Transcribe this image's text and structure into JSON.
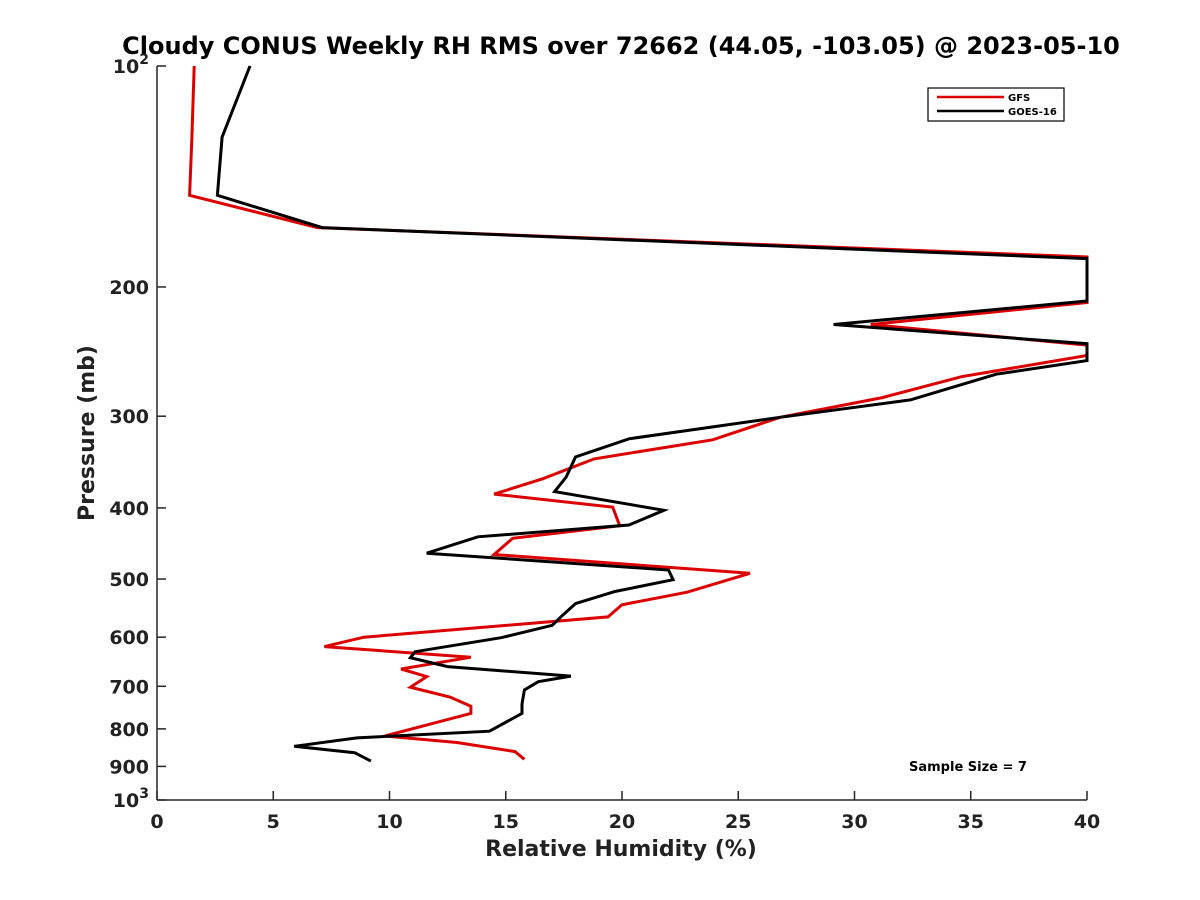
{
  "chart_data": {
    "type": "line",
    "title": "Cloudy CONUS Weekly RH RMS over 72662 (44.05, -103.05) @ 2023-05-10",
    "xlabel": "Relative Humidity (%)",
    "ylabel": "Pressure (mb)",
    "xlim": [
      0,
      40
    ],
    "ylim": [
      100,
      1000
    ],
    "yscale": "log",
    "y_reversed": true,
    "grid": false,
    "legend_position": "top-right",
    "x_ticks": [
      "0",
      "5",
      "10",
      "15",
      "20",
      "25",
      "30",
      "35",
      "40"
    ],
    "y_ticks": [
      {
        "value": 100,
        "base": "10",
        "exp": "2"
      },
      {
        "value": 200,
        "label": "200"
      },
      {
        "value": 300,
        "label": "300"
      },
      {
        "value": 400,
        "label": "400"
      },
      {
        "value": 500,
        "label": "500"
      },
      {
        "value": 600,
        "label": "600"
      },
      {
        "value": 700,
        "label": "700"
      },
      {
        "value": 800,
        "label": "800"
      },
      {
        "value": 900,
        "label": "900"
      },
      {
        "value": 1000,
        "base": "10",
        "exp": "3"
      }
    ],
    "annotation": "Sample Size = 7",
    "series": [
      {
        "name": "GFS",
        "color": "#dd0000",
        "points": [
          {
            "x": 1.6,
            "y": 100
          },
          {
            "x": 1.5,
            "y": 125
          },
          {
            "x": 1.4,
            "y": 150
          },
          {
            "x": 6.9,
            "y": 166
          },
          {
            "x": 40,
            "y": 182
          },
          {
            "x": 40,
            "y": 210
          },
          {
            "x": 30.7,
            "y": 225
          },
          {
            "x": 40,
            "y": 240
          },
          {
            "x": 40,
            "y": 248
          },
          {
            "x": 34.6,
            "y": 265
          },
          {
            "x": 31.2,
            "y": 283
          },
          {
            "x": 26.8,
            "y": 301
          },
          {
            "x": 23.9,
            "y": 323
          },
          {
            "x": 18.8,
            "y": 343
          },
          {
            "x": 16.6,
            "y": 365
          },
          {
            "x": 14.5,
            "y": 383
          },
          {
            "x": 19.6,
            "y": 399
          },
          {
            "x": 19.9,
            "y": 423
          },
          {
            "x": 15.3,
            "y": 440
          },
          {
            "x": 14.5,
            "y": 463
          },
          {
            "x": 25.5,
            "y": 491
          },
          {
            "x": 24.5,
            "y": 502
          },
          {
            "x": 22.8,
            "y": 521
          },
          {
            "x": 20.0,
            "y": 542
          },
          {
            "x": 19.4,
            "y": 563
          },
          {
            "x": 8.9,
            "y": 600
          },
          {
            "x": 7.2,
            "y": 618
          },
          {
            "x": 13.5,
            "y": 639
          },
          {
            "x": 10.5,
            "y": 663
          },
          {
            "x": 11.6,
            "y": 679
          },
          {
            "x": 10.9,
            "y": 702
          },
          {
            "x": 12.6,
            "y": 724
          },
          {
            "x": 13.5,
            "y": 745
          },
          {
            "x": 13.5,
            "y": 762
          },
          {
            "x": 9.8,
            "y": 818
          },
          {
            "x": 12.9,
            "y": 835
          },
          {
            "x": 15.4,
            "y": 859
          },
          {
            "x": 15.8,
            "y": 880
          }
        ]
      },
      {
        "name": "GOES-16",
        "color": "#000000",
        "points": [
          {
            "x": 4.0,
            "y": 100
          },
          {
            "x": 2.8,
            "y": 125
          },
          {
            "x": 2.6,
            "y": 150
          },
          {
            "x": 7.1,
            "y": 166
          },
          {
            "x": 40,
            "y": 183
          },
          {
            "x": 40,
            "y": 209
          },
          {
            "x": 29.1,
            "y": 225
          },
          {
            "x": 40,
            "y": 239
          },
          {
            "x": 40,
            "y": 252
          },
          {
            "x": 36.1,
            "y": 263
          },
          {
            "x": 32.4,
            "y": 285
          },
          {
            "x": 26.8,
            "y": 301
          },
          {
            "x": 20.3,
            "y": 322
          },
          {
            "x": 18.0,
            "y": 341
          },
          {
            "x": 17.6,
            "y": 363
          },
          {
            "x": 17.1,
            "y": 380
          },
          {
            "x": 21.8,
            "y": 403
          },
          {
            "x": 20.3,
            "y": 422
          },
          {
            "x": 13.8,
            "y": 438
          },
          {
            "x": 11.6,
            "y": 461
          },
          {
            "x": 22.0,
            "y": 486
          },
          {
            "x": 22.2,
            "y": 501
          },
          {
            "x": 19.7,
            "y": 520
          },
          {
            "x": 18.0,
            "y": 540
          },
          {
            "x": 17.4,
            "y": 562
          },
          {
            "x": 17.0,
            "y": 578
          },
          {
            "x": 14.8,
            "y": 601
          },
          {
            "x": 11.1,
            "y": 628
          },
          {
            "x": 10.9,
            "y": 640
          },
          {
            "x": 12.5,
            "y": 658
          },
          {
            "x": 17.8,
            "y": 678
          },
          {
            "x": 16.4,
            "y": 690
          },
          {
            "x": 15.8,
            "y": 708
          },
          {
            "x": 15.7,
            "y": 740
          },
          {
            "x": 15.7,
            "y": 762
          },
          {
            "x": 14.3,
            "y": 806
          },
          {
            "x": 8.6,
            "y": 823
          },
          {
            "x": 5.9,
            "y": 845
          },
          {
            "x": 8.5,
            "y": 862
          },
          {
            "x": 9.2,
            "y": 885
          }
        ]
      }
    ]
  }
}
